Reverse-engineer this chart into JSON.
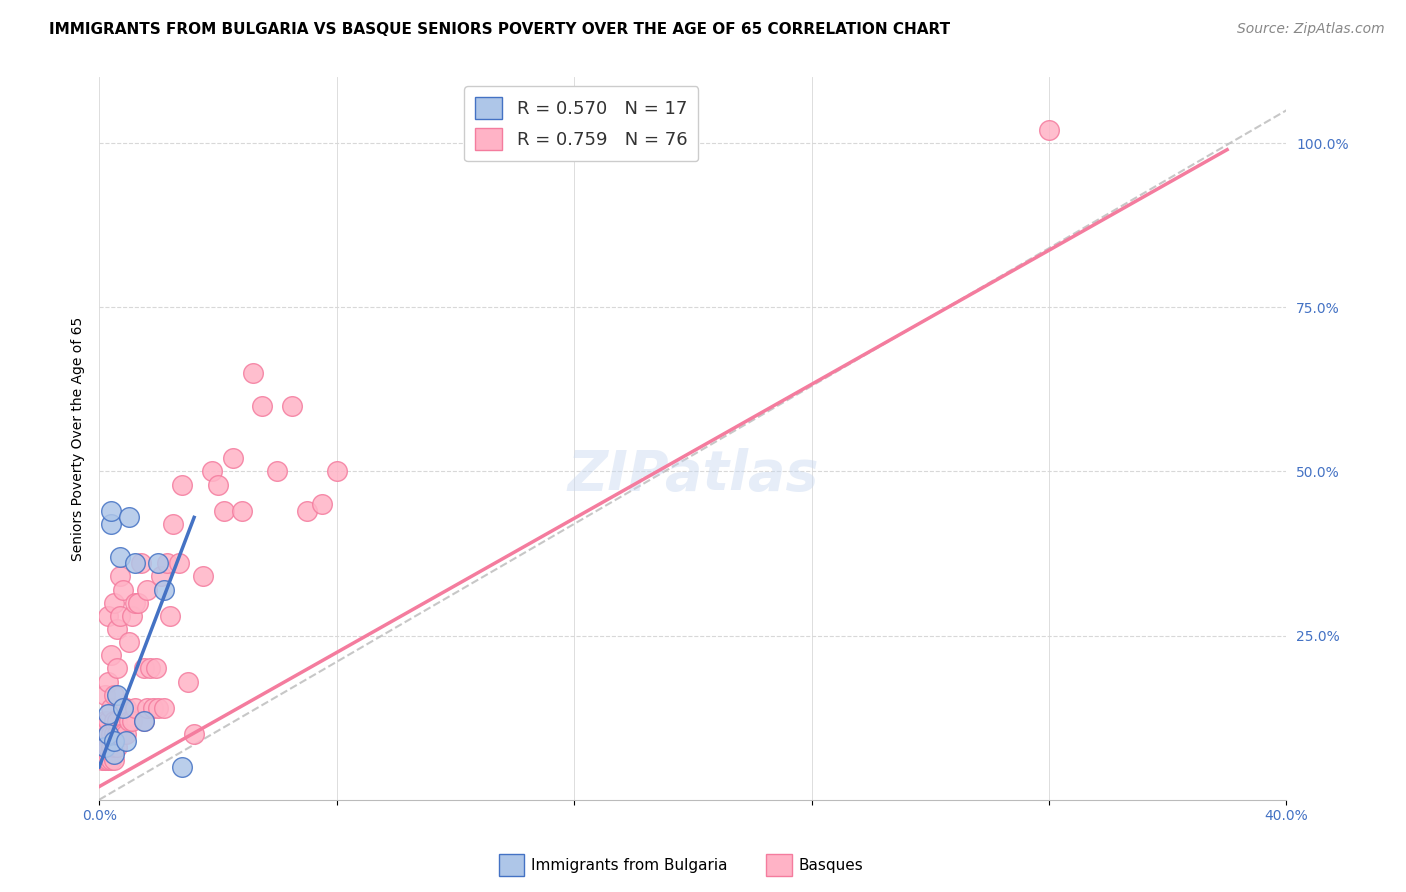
{
  "title": "IMMIGRANTS FROM BULGARIA VS BASQUE SENIORS POVERTY OVER THE AGE OF 65 CORRELATION CHART",
  "source": "Source: ZipAtlas.com",
  "ylabel": "Seniors Poverty Over the Age of 65",
  "xlim": [
    0.0,
    0.4
  ],
  "ylim": [
    0.0,
    1.1
  ],
  "x_ticks": [
    0.0,
    0.08,
    0.16,
    0.24,
    0.32,
    0.4
  ],
  "x_tick_labels": [
    "0.0%",
    "",
    "",
    "",
    "",
    "40.0%"
  ],
  "y_ticks_right": [
    0.25,
    0.5,
    0.75,
    1.0
  ],
  "y_tick_labels_right": [
    "25.0%",
    "50.0%",
    "75.0%",
    "100.0%"
  ],
  "watermark": "ZIPatlas",
  "legend1_label": "R = 0.570   N = 17",
  "legend2_label": "R = 0.759   N = 76",
  "legend1_color": "#aec6e8",
  "legend2_color": "#ffb3c6",
  "line1_color": "#4472c4",
  "line2_color": "#f47c9e",
  "diag_color": "#b0b0b0",
  "scatter_blue_color": "#aec6e8",
  "scatter_pink_color": "#ffb3c6",
  "scatter_blue_edge": "#4472c4",
  "scatter_pink_edge": "#f47c9e",
  "blue_x": [
    0.002,
    0.003,
    0.003,
    0.004,
    0.004,
    0.005,
    0.005,
    0.006,
    0.007,
    0.008,
    0.009,
    0.01,
    0.012,
    0.015,
    0.02,
    0.022,
    0.028
  ],
  "blue_y": [
    0.08,
    0.1,
    0.13,
    0.42,
    0.44,
    0.07,
    0.09,
    0.16,
    0.37,
    0.14,
    0.09,
    0.43,
    0.36,
    0.12,
    0.36,
    0.32,
    0.05
  ],
  "pink_x": [
    0.001,
    0.001,
    0.001,
    0.002,
    0.002,
    0.002,
    0.002,
    0.002,
    0.003,
    0.003,
    0.003,
    0.003,
    0.003,
    0.003,
    0.004,
    0.004,
    0.004,
    0.004,
    0.004,
    0.005,
    0.005,
    0.005,
    0.005,
    0.005,
    0.005,
    0.006,
    0.006,
    0.006,
    0.006,
    0.006,
    0.007,
    0.007,
    0.007,
    0.008,
    0.008,
    0.008,
    0.009,
    0.009,
    0.01,
    0.01,
    0.011,
    0.011,
    0.012,
    0.012,
    0.013,
    0.014,
    0.015,
    0.015,
    0.016,
    0.016,
    0.017,
    0.018,
    0.019,
    0.02,
    0.021,
    0.022,
    0.023,
    0.024,
    0.025,
    0.027,
    0.028,
    0.03,
    0.032,
    0.035,
    0.038,
    0.04,
    0.042,
    0.045,
    0.048,
    0.052,
    0.055,
    0.06,
    0.065,
    0.07,
    0.075,
    0.08
  ],
  "pink_y": [
    0.06,
    0.08,
    0.1,
    0.06,
    0.08,
    0.1,
    0.12,
    0.16,
    0.06,
    0.08,
    0.1,
    0.12,
    0.18,
    0.28,
    0.06,
    0.08,
    0.1,
    0.14,
    0.22,
    0.06,
    0.08,
    0.1,
    0.12,
    0.16,
    0.3,
    0.08,
    0.1,
    0.12,
    0.2,
    0.26,
    0.1,
    0.28,
    0.34,
    0.1,
    0.14,
    0.32,
    0.1,
    0.14,
    0.12,
    0.24,
    0.12,
    0.28,
    0.14,
    0.3,
    0.3,
    0.36,
    0.12,
    0.2,
    0.14,
    0.32,
    0.2,
    0.14,
    0.2,
    0.14,
    0.34,
    0.14,
    0.36,
    0.28,
    0.42,
    0.36,
    0.48,
    0.18,
    0.1,
    0.34,
    0.5,
    0.48,
    0.44,
    0.52,
    0.44,
    0.65,
    0.6,
    0.5,
    0.6,
    0.44,
    0.45,
    0.5
  ],
  "pink_outlier_x": [
    0.32
  ],
  "pink_outlier_y": [
    1.02
  ],
  "blue_line_x": [
    0.0,
    0.032
  ],
  "blue_line_y": [
    0.05,
    0.43
  ],
  "pink_line_x": [
    0.0,
    0.38
  ],
  "pink_line_y": [
    0.02,
    0.99
  ],
  "diag_line_x": [
    0.0,
    0.4
  ],
  "diag_line_y": [
    0.0,
    1.05
  ],
  "title_fontsize": 11,
  "axis_label_fontsize": 10,
  "tick_fontsize": 10,
  "legend_fontsize": 13,
  "watermark_fontsize": 40,
  "source_fontsize": 10
}
